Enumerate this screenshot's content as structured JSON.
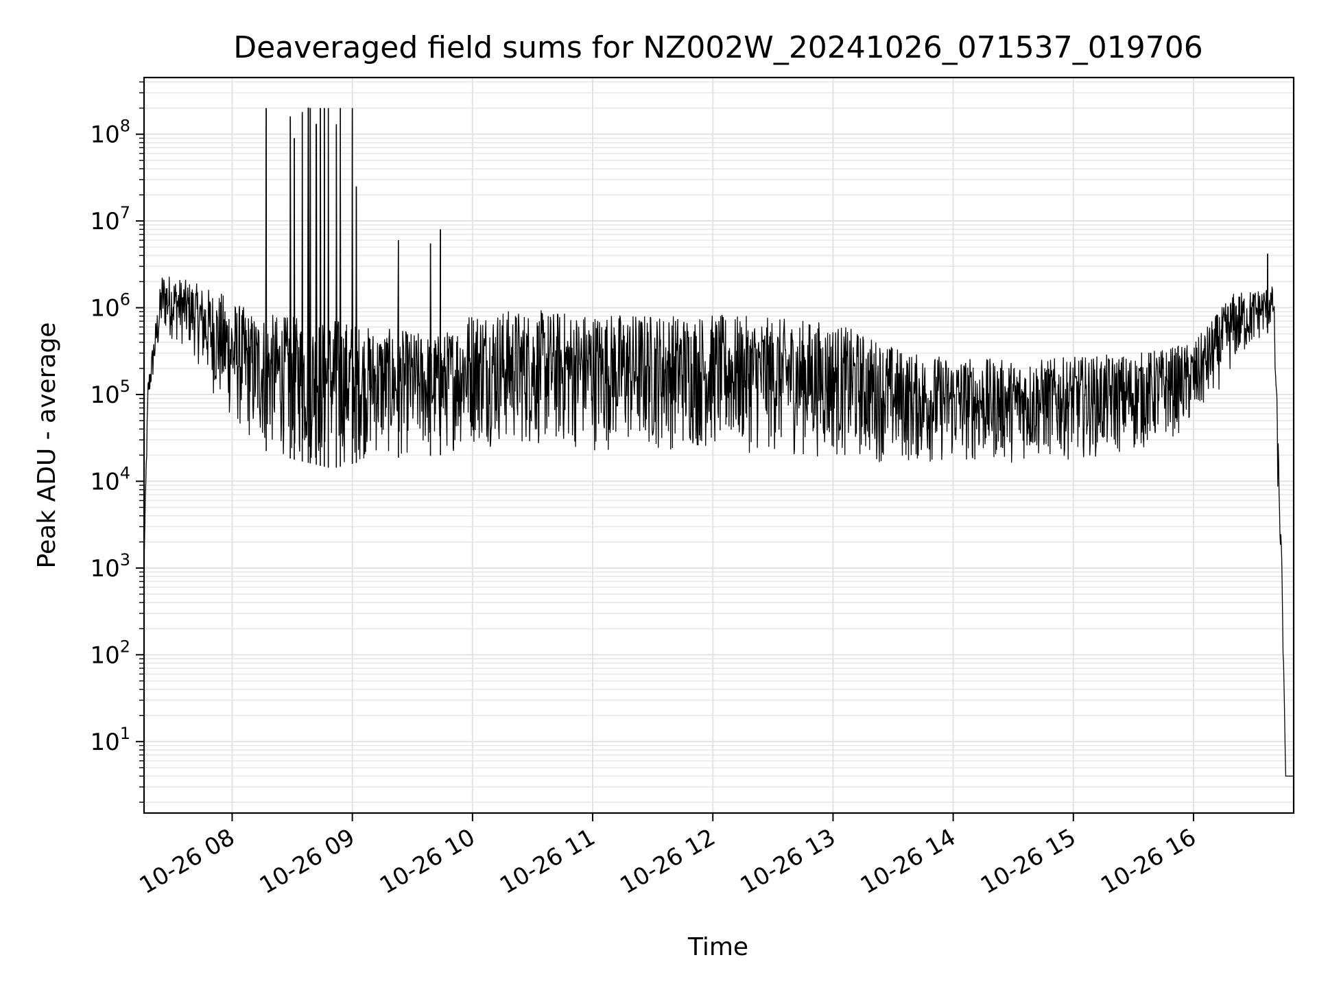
{
  "chart_data": {
    "type": "line",
    "title": "Deaveraged field sums for NZ002W_20241026_071537_019706",
    "xlabel": "Time",
    "ylabel": "Peak ADU - average",
    "yscale": "log",
    "ylim": [
      1.5,
      450000000
    ],
    "xlim": [
      "2024-10-26 07:16",
      "2024-10-26 16:50"
    ],
    "grid": true,
    "x_ticks": [
      "10-26 08",
      "10-26 09",
      "10-26 10",
      "10-26 11",
      "10-26 12",
      "10-26 13",
      "10-26 14",
      "10-26 15",
      "10-26 16"
    ],
    "y_ticks": [
      {
        "base": "10",
        "exp": "1",
        "value": 10
      },
      {
        "base": "10",
        "exp": "2",
        "value": 100
      },
      {
        "base": "10",
        "exp": "3",
        "value": 1000
      },
      {
        "base": "10",
        "exp": "4",
        "value": 10000
      },
      {
        "base": "10",
        "exp": "5",
        "value": 100000
      },
      {
        "base": "10",
        "exp": "6",
        "value": 1000000
      },
      {
        "base": "10",
        "exp": "7",
        "value": 10000000
      },
      {
        "base": "10",
        "exp": "8",
        "value": 100000000
      }
    ],
    "series": [
      {
        "color": "#000000",
        "envelope": [
          {
            "t": "07:16",
            "low": 900,
            "high": 1500
          },
          {
            "t": "07:18",
            "low": 70000,
            "high": 150000
          },
          {
            "t": "07:25",
            "low": 500000,
            "high": 2600000
          },
          {
            "t": "07:40",
            "low": 300000,
            "high": 2000000
          },
          {
            "t": "07:55",
            "low": 60000,
            "high": 1500000
          },
          {
            "t": "08:10",
            "low": 25000,
            "high": 900000
          },
          {
            "t": "08:30",
            "low": 18000,
            "high": 800000
          },
          {
            "t": "08:50",
            "low": 14000,
            "high": 800000
          },
          {
            "t": "09:10",
            "low": 18000,
            "high": 600000
          },
          {
            "t": "09:45",
            "low": 20000,
            "high": 500000
          },
          {
            "t": "10:00",
            "low": 25000,
            "high": 1000000
          },
          {
            "t": "11:00",
            "low": 22000,
            "high": 900000
          },
          {
            "t": "12:00",
            "low": 22000,
            "high": 850000
          },
          {
            "t": "13:00",
            "low": 18000,
            "high": 700000
          },
          {
            "t": "13:40",
            "low": 15000,
            "high": 300000
          },
          {
            "t": "14:30",
            "low": 16000,
            "high": 250000
          },
          {
            "t": "15:30",
            "low": 20000,
            "high": 300000
          },
          {
            "t": "16:00",
            "low": 40000,
            "high": 400000
          },
          {
            "t": "16:20",
            "low": 200000,
            "high": 1500000
          },
          {
            "t": "16:40",
            "low": 600000,
            "high": 1800000
          },
          {
            "t": "16:42",
            "low": 8000,
            "high": 50000
          },
          {
            "t": "16:44",
            "low": 500,
            "high": 1500
          },
          {
            "t": "16:46",
            "low": 4,
            "high": 4
          },
          {
            "t": "16:50",
            "low": 4,
            "high": 4
          }
        ],
        "spikes": [
          {
            "t": "08:17",
            "value": 200000000
          },
          {
            "t": "08:29",
            "value": 160000000
          },
          {
            "t": "08:31",
            "value": 90000000
          },
          {
            "t": "08:35",
            "value": 180000000
          },
          {
            "t": "08:38",
            "value": 200000000
          },
          {
            "t": "08:39",
            "value": 200000000
          },
          {
            "t": "08:42",
            "value": 130000000
          },
          {
            "t": "08:44",
            "value": 200000000
          },
          {
            "t": "08:46",
            "value": 200000000
          },
          {
            "t": "08:48",
            "value": 200000000
          },
          {
            "t": "08:52",
            "value": 130000000
          },
          {
            "t": "08:54",
            "value": 200000000
          },
          {
            "t": "09:00",
            "value": 200000000
          },
          {
            "t": "09:02",
            "value": 25000000
          },
          {
            "t": "09:23",
            "value": 6000000
          },
          {
            "t": "09:39",
            "value": 5500000
          },
          {
            "t": "09:44",
            "value": 8000000
          },
          {
            "t": "16:37",
            "value": 4200000
          }
        ]
      }
    ]
  }
}
